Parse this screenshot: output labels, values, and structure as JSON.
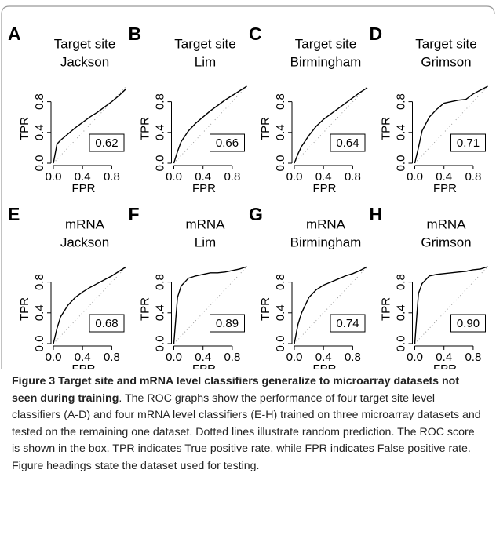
{
  "chart_data": [
    {
      "type": "line",
      "label": "A",
      "title": "Target site",
      "subtitle": "Jackson",
      "xlabel": "FPR",
      "ylabel": "TPR",
      "score": 0.62,
      "x": [
        0,
        0.05,
        0.1,
        0.2,
        0.3,
        0.4,
        0.5,
        0.6,
        0.7,
        0.8,
        0.9,
        1.0
      ],
      "series": [
        {
          "color": "#000000",
          "values": [
            0,
            0.25,
            0.3,
            0.38,
            0.46,
            0.53,
            0.6,
            0.66,
            0.73,
            0.8,
            0.88,
            0.97
          ]
        }
      ],
      "xlim": [
        0,
        1
      ],
      "ylim": [
        0,
        1
      ],
      "xticks": [
        {
          "value": 0,
          "label": "0.0"
        },
        0.4,
        0.8
      ],
      "yticks": [
        {
          "value": 0,
          "label": "0.0"
        },
        0.4,
        0.8
      ],
      "reference_line": true,
      "grid": false
    },
    {
      "type": "line",
      "label": "B",
      "title": "Target site",
      "subtitle": "Lim",
      "xlabel": "FPR",
      "ylabel": "TPR",
      "score": 0.66,
      "x": [
        0,
        0.05,
        0.1,
        0.2,
        0.3,
        0.4,
        0.5,
        0.6,
        0.7,
        0.8,
        0.9,
        1.0
      ],
      "series": [
        {
          "color": "#000000",
          "values": [
            0,
            0.15,
            0.28,
            0.42,
            0.52,
            0.6,
            0.68,
            0.75,
            0.82,
            0.88,
            0.94,
            1
          ]
        }
      ],
      "xlim": [
        0,
        1
      ],
      "ylim": [
        0,
        1
      ],
      "xticks": [
        {
          "value": 0,
          "label": "0.0"
        },
        0.4,
        0.8
      ],
      "yticks": [
        {
          "value": 0,
          "label": "0.0"
        },
        0.4,
        0.8
      ],
      "reference_line": true,
      "grid": false
    },
    {
      "type": "line",
      "label": "C",
      "title": "Target site",
      "subtitle": "Birmingham",
      "xlabel": "FPR",
      "ylabel": "TPR",
      "score": 0.64,
      "x": [
        0,
        0.05,
        0.1,
        0.2,
        0.3,
        0.4,
        0.5,
        0.6,
        0.7,
        0.8,
        0.9,
        1.0
      ],
      "series": [
        {
          "color": "#000000",
          "values": [
            0,
            0.12,
            0.22,
            0.36,
            0.48,
            0.57,
            0.64,
            0.71,
            0.78,
            0.85,
            0.92,
            0.98
          ]
        }
      ],
      "xlim": [
        0,
        1
      ],
      "ylim": [
        0,
        1
      ],
      "xticks": [
        {
          "value": 0,
          "label": "0.0"
        },
        0.4,
        0.8
      ],
      "yticks": [
        {
          "value": 0,
          "label": "0.0"
        },
        0.4,
        0.8
      ],
      "reference_line": true,
      "grid": false
    },
    {
      "type": "line",
      "label": "D",
      "title": "Target site",
      "subtitle": "Grimson",
      "xlabel": "FPR",
      "ylabel": "TPR",
      "score": 0.71,
      "x": [
        0,
        0.05,
        0.1,
        0.2,
        0.3,
        0.4,
        0.5,
        0.6,
        0.7,
        0.8,
        0.9,
        1.0
      ],
      "series": [
        {
          "color": "#000000",
          "values": [
            0,
            0.2,
            0.42,
            0.6,
            0.7,
            0.78,
            0.8,
            0.82,
            0.83,
            0.9,
            0.95,
            1
          ]
        }
      ],
      "xlim": [
        0,
        1
      ],
      "ylim": [
        0,
        1
      ],
      "xticks": [
        {
          "value": 0,
          "label": "0.0"
        },
        0.4,
        0.8
      ],
      "yticks": [
        {
          "value": 0,
          "label": "0.0"
        },
        0.4,
        0.8
      ],
      "reference_line": true,
      "grid": false
    },
    {
      "type": "line",
      "label": "E",
      "title": "mRNA",
      "subtitle": "Jackson",
      "xlabel": "FPR",
      "ylabel": "TPR",
      "score": 0.68,
      "x": [
        0,
        0.05,
        0.1,
        0.2,
        0.3,
        0.4,
        0.5,
        0.6,
        0.7,
        0.8,
        0.9,
        1.0
      ],
      "series": [
        {
          "color": "#000000",
          "values": [
            0,
            0.2,
            0.35,
            0.5,
            0.6,
            0.67,
            0.73,
            0.78,
            0.83,
            0.88,
            0.94,
            1
          ]
        }
      ],
      "xlim": [
        0,
        1
      ],
      "ylim": [
        0,
        1
      ],
      "xticks": [
        {
          "value": 0,
          "label": "0.0"
        },
        0.4,
        0.8
      ],
      "yticks": [
        {
          "value": 0,
          "label": "0.0"
        },
        0.4,
        0.8
      ],
      "reference_line": true,
      "grid": false
    },
    {
      "type": "line",
      "label": "F",
      "title": "mRNA",
      "subtitle": "Lim",
      "xlabel": "FPR",
      "ylabel": "TPR",
      "score": 0.89,
      "x": [
        0,
        0.05,
        0.1,
        0.2,
        0.3,
        0.4,
        0.5,
        0.6,
        0.7,
        0.8,
        0.9,
        1.0
      ],
      "series": [
        {
          "color": "#000000",
          "values": [
            0,
            0.6,
            0.75,
            0.85,
            0.88,
            0.9,
            0.92,
            0.92,
            0.93,
            0.95,
            0.97,
            1
          ]
        }
      ],
      "xlim": [
        0,
        1
      ],
      "ylim": [
        0,
        1
      ],
      "xticks": [
        {
          "value": 0,
          "label": "0.0"
        },
        0.4,
        0.8
      ],
      "yticks": [
        {
          "value": 0,
          "label": "0.0"
        },
        0.4,
        0.8
      ],
      "reference_line": true,
      "grid": false
    },
    {
      "type": "line",
      "label": "G",
      "title": "mRNA",
      "subtitle": "Birmingham",
      "xlabel": "FPR",
      "ylabel": "TPR",
      "score": 0.74,
      "x": [
        0,
        0.05,
        0.1,
        0.2,
        0.3,
        0.4,
        0.5,
        0.6,
        0.7,
        0.8,
        0.9,
        1.0
      ],
      "series": [
        {
          "color": "#000000",
          "values": [
            0,
            0.25,
            0.4,
            0.6,
            0.7,
            0.76,
            0.8,
            0.84,
            0.88,
            0.91,
            0.95,
            1
          ]
        }
      ],
      "xlim": [
        0,
        1
      ],
      "ylim": [
        0,
        1
      ],
      "xticks": [
        {
          "value": 0,
          "label": "0.0"
        },
        0.4,
        0.8
      ],
      "yticks": [
        {
          "value": 0,
          "label": "0.0"
        },
        0.4,
        0.8
      ],
      "reference_line": true,
      "grid": false
    },
    {
      "type": "line",
      "label": "H",
      "title": "mRNA",
      "subtitle": "Grimson",
      "xlabel": "FPR",
      "ylabel": "TPR",
      "score": {
        "value": 0.9,
        "label": "0.90"
      },
      "x": [
        0,
        0.05,
        0.1,
        0.2,
        0.3,
        0.4,
        0.5,
        0.6,
        0.7,
        0.8,
        0.9,
        1.0
      ],
      "series": [
        {
          "color": "#000000",
          "values": [
            0,
            0.65,
            0.78,
            0.88,
            0.9,
            0.91,
            0.92,
            0.93,
            0.94,
            0.96,
            0.97,
            1
          ]
        }
      ],
      "xlim": [
        0,
        1
      ],
      "ylim": [
        0,
        1
      ],
      "xticks": [
        {
          "value": 0,
          "label": "0.0"
        },
        0.4,
        0.8
      ],
      "yticks": [
        {
          "value": 0,
          "label": "0.0"
        },
        0.4,
        0.8
      ],
      "reference_line": true,
      "grid": false
    }
  ],
  "caption": {
    "heading": "Figure 3 Target site and mRNA level classifiers generalize to microarray datasets not seen during training",
    "text": ". The ROC graphs show the performance of four target site level classifiers (A-D) and four mRNA level classifiers (E-H) trained on three microarray datasets and tested on the remaining one dataset. Dotted lines illustrate random prediction. The ROC score is shown in the box. TPR indicates True positive rate, while FPR indicates False positive rate. Figure headings state the dataset used for testing."
  }
}
